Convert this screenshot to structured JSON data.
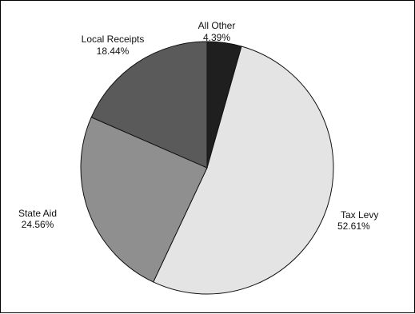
{
  "chart_data": {
    "type": "pie",
    "title": "",
    "start_angle_deg": 0,
    "direction": "clockwise",
    "slices": [
      {
        "name": "All Other",
        "value": 4.39,
        "label": "4.39%",
        "color": "#1f1f1f"
      },
      {
        "name": "Tax Levy",
        "value": 52.61,
        "label": "52.61%",
        "color": "#e4e4e4"
      },
      {
        "name": "State Aid",
        "value": 24.56,
        "label": "24.56%",
        "color": "#8f8f8f"
      },
      {
        "name": "Local Receipts",
        "value": 18.44,
        "label": "18.44%",
        "color": "#5a5a5a"
      }
    ]
  }
}
